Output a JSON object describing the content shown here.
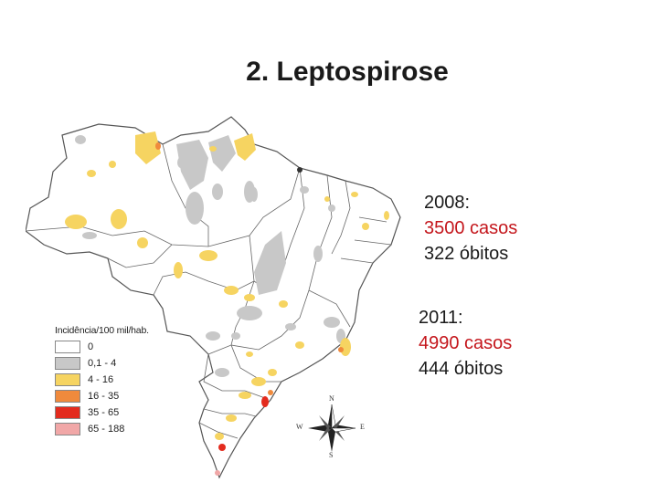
{
  "title": "2. Leptospirose",
  "stats": [
    {
      "year": "2008:",
      "cases": "3500 casos",
      "deaths": "322 óbitos"
    },
    {
      "year": "2011:",
      "cases": "4990 casos",
      "deaths": "444 óbitos"
    }
  ],
  "legend": {
    "title": "Incidência/100 mil/hab.",
    "classes": [
      {
        "label": "0",
        "color": "#ffffff"
      },
      {
        "label": "0,1 - 4",
        "color": "#c8c8c8"
      },
      {
        "label": "4 - 16",
        "color": "#f6d461"
      },
      {
        "label": "16 - 35",
        "color": "#f08a3c"
      },
      {
        "label": "35 - 65",
        "color": "#e32b1e"
      },
      {
        "label": "65 - 188",
        "color": "#f1a7a7"
      }
    ]
  },
  "compass": {
    "n": "N",
    "s": "S",
    "e": "E",
    "w": "W"
  },
  "colors": {
    "accent_red": "#c4161c",
    "border": "#555555"
  }
}
